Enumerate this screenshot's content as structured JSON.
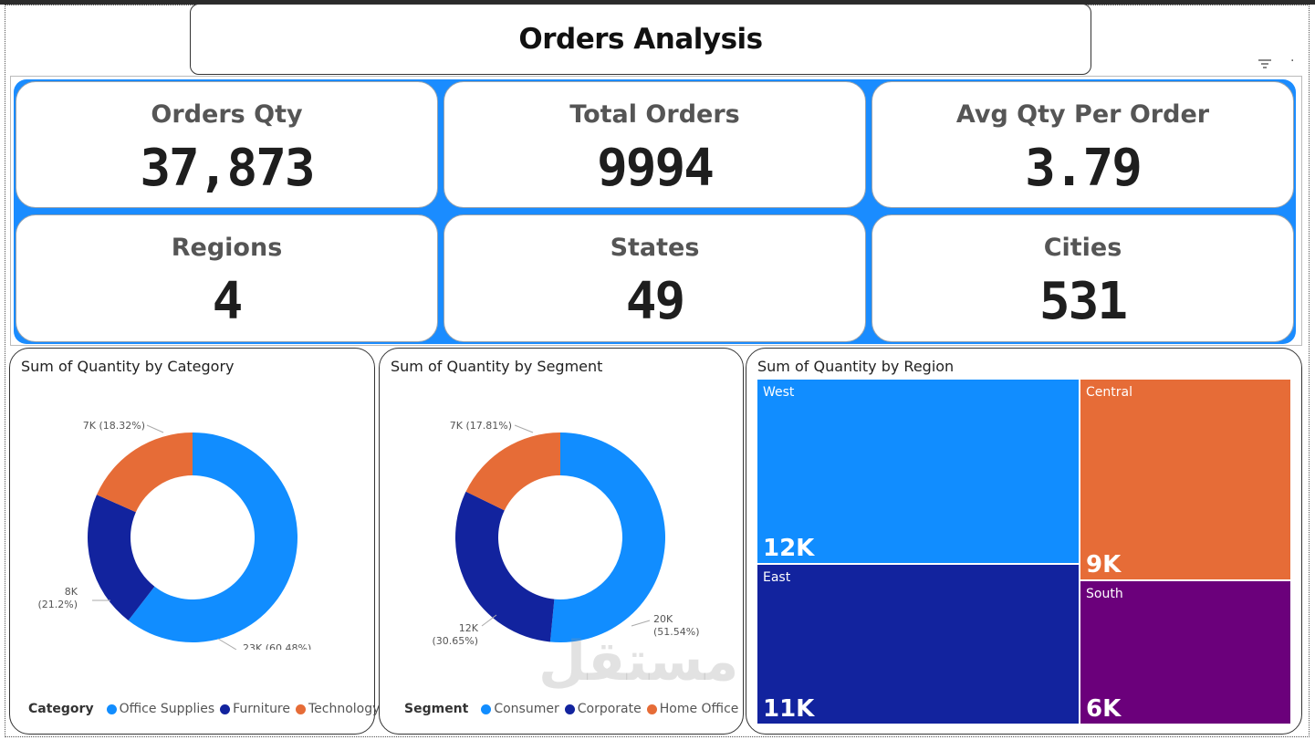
{
  "title": "Orders Analysis",
  "colors": {
    "accent": "#1a8cff",
    "blue": "#118dff",
    "navy": "#12239e",
    "orange": "#e66c37",
    "purple": "#6b007b"
  },
  "kpis": [
    {
      "label": "Orders Qty",
      "value": "37,873"
    },
    {
      "label": "Total Orders",
      "value": "9994"
    },
    {
      "label": "Avg Qty Per Order",
      "value": "3.79"
    },
    {
      "label": "Regions",
      "value": "4"
    },
    {
      "label": "States",
      "value": "49"
    },
    {
      "label": "Cities",
      "value": "531"
    }
  ],
  "chart_data": [
    {
      "type": "pie",
      "title": "Sum of Quantity by Category",
      "legend_title": "Category",
      "categories": [
        "Office Supplies",
        "Furniture",
        "Technology"
      ],
      "values": [
        60.48,
        21.2,
        18.32
      ],
      "data_labels": [
        "23K (60.48%)",
        "8K (21.2%)",
        "7K (18.32%)"
      ],
      "colors": [
        "#118dff",
        "#12239e",
        "#e66c37"
      ]
    },
    {
      "type": "pie",
      "title": "Sum of Quantity by Segment",
      "legend_title": "Segment",
      "categories": [
        "Consumer",
        "Corporate",
        "Home Office"
      ],
      "values": [
        51.54,
        30.65,
        17.81
      ],
      "data_labels": [
        "20K (51.54%)",
        "12K (30.65%)",
        "7K (17.81%)"
      ],
      "colors": [
        "#118dff",
        "#12239e",
        "#e66c37"
      ]
    },
    {
      "type": "treemap",
      "title": "Sum of Quantity by Region",
      "categories": [
        "West",
        "East",
        "Central",
        "South"
      ],
      "value_labels": [
        "12K",
        "11K",
        "9K",
        "6K"
      ],
      "values": [
        12,
        11,
        9,
        6
      ],
      "colors": [
        "#118dff",
        "#12239e",
        "#e66c37",
        "#6b007b"
      ]
    }
  ],
  "watermark": "مستقل"
}
